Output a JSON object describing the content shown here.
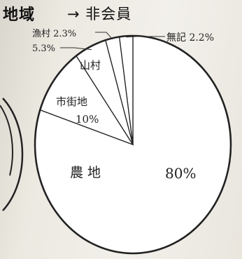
{
  "header": {
    "title": "地域",
    "subtitle": "→ 非会員"
  },
  "chart_data": {
    "type": "pie",
    "title": "地域",
    "subtitle": "→ 非会員",
    "start": "12 o'clock, clockwise",
    "slices": [
      {
        "label": "農 地",
        "value": 80,
        "value_label": "80%"
      },
      {
        "label": "市街地",
        "value": 10,
        "value_label": "10%"
      },
      {
        "label": "山村",
        "value": 5.3,
        "value_label": "5.3%"
      },
      {
        "label": "漁村",
        "value": 2.3,
        "value_label": "2.3%"
      },
      {
        "label": "無記",
        "value": 2.2,
        "value_label": "2.2%"
      }
    ],
    "colors": {
      "fill": "#ffffff",
      "stroke": "#222222"
    }
  }
}
